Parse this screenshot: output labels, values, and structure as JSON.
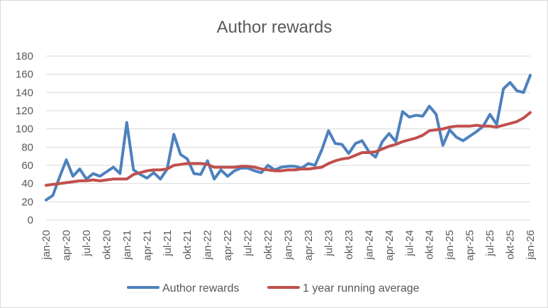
{
  "chart_data": {
    "type": "line",
    "title": "Author rewards",
    "xlabel": "",
    "ylabel": "",
    "ylim": [
      0,
      180
    ],
    "yticks": [
      0,
      20,
      40,
      60,
      80,
      100,
      120,
      140,
      160,
      180
    ],
    "grid": true,
    "legend_position": "bottom",
    "x": [
      "jan-20",
      "feb-20",
      "mar-20",
      "apr-20",
      "mai-20",
      "jun-20",
      "jul-20",
      "aug-20",
      "sep-20",
      "okt-20",
      "nov-20",
      "des-20",
      "jan-21",
      "feb-21",
      "mar-21",
      "apr-21",
      "mai-21",
      "jun-21",
      "jul-21",
      "aug-21",
      "sep-21",
      "okt-21",
      "nov-21",
      "des-21",
      "jan-22",
      "feb-22",
      "mar-22",
      "apr-22",
      "mai-22",
      "jun-22",
      "jul-22",
      "aug-22",
      "sep-22",
      "okt-22",
      "nov-22",
      "des-22",
      "jan-23",
      "feb-23",
      "mar-23",
      "apr-23",
      "mai-23",
      "jun-23",
      "jul-23",
      "aug-23",
      "sep-23",
      "okt-23",
      "nov-23",
      "des-23",
      "jan-24",
      "feb-24",
      "mar-24",
      "apr-24",
      "mai-24",
      "jun-24",
      "jul-24",
      "aug-24",
      "sep-24",
      "okt-24",
      "nov-24",
      "des-24",
      "jan-25",
      "feb-25",
      "mar-25",
      "apr-25",
      "mai-25",
      "jun-25",
      "jul-25",
      "aug-25",
      "sep-25",
      "okt-25",
      "nov-25",
      "des-25",
      "jan-26"
    ],
    "x_tick_labels": [
      "jan-20",
      "apr-20",
      "jul-20",
      "okt-20",
      "jan-21",
      "apr-21",
      "jul-21",
      "okt-21",
      "jan-22",
      "apr-22",
      "jul-22",
      "okt-22",
      "jan-23",
      "apr-23",
      "jul-23",
      "okt-23",
      "jan-24",
      "apr-24",
      "jul-24",
      "okt-24",
      "jan-25",
      "apr-25",
      "jul-25",
      "okt-25",
      "jan-26"
    ],
    "series": [
      {
        "name": "Author rewards",
        "color": "#4e81bd",
        "values": [
          22,
          27,
          47,
          66,
          48,
          56,
          45,
          51,
          48,
          53,
          58,
          51,
          107,
          55,
          50,
          46,
          52,
          45,
          56,
          94,
          72,
          67,
          51,
          50,
          65,
          45,
          55,
          48,
          54,
          57,
          57,
          54,
          52,
          60,
          55,
          58,
          59,
          59,
          57,
          62,
          60,
          77,
          98,
          84,
          83,
          73,
          84,
          87,
          75,
          69,
          86,
          95,
          86,
          119,
          113,
          115,
          114,
          125,
          116,
          82,
          99,
          91,
          87,
          92,
          97,
          103,
          116,
          105,
          144,
          151,
          142,
          140,
          159
        ]
      },
      {
        "name": "1 year running average",
        "color": "#c0504d",
        "values": [
          38,
          39,
          40,
          41,
          42,
          43,
          43,
          44,
          43,
          44,
          45,
          45,
          45,
          50,
          52,
          54,
          55,
          55,
          56,
          60,
          61,
          62,
          62,
          62,
          61,
          58,
          58,
          58,
          58,
          59,
          59,
          58,
          56,
          55,
          54,
          54,
          55,
          55,
          56,
          56,
          57,
          58,
          62,
          65,
          67,
          68,
          71,
          74,
          74,
          75,
          78,
          81,
          83,
          86,
          88,
          90,
          93,
          98,
          99,
          100,
          102,
          103,
          103,
          103,
          104,
          103,
          103,
          102,
          104,
          106,
          108,
          112,
          118
        ]
      }
    ]
  }
}
